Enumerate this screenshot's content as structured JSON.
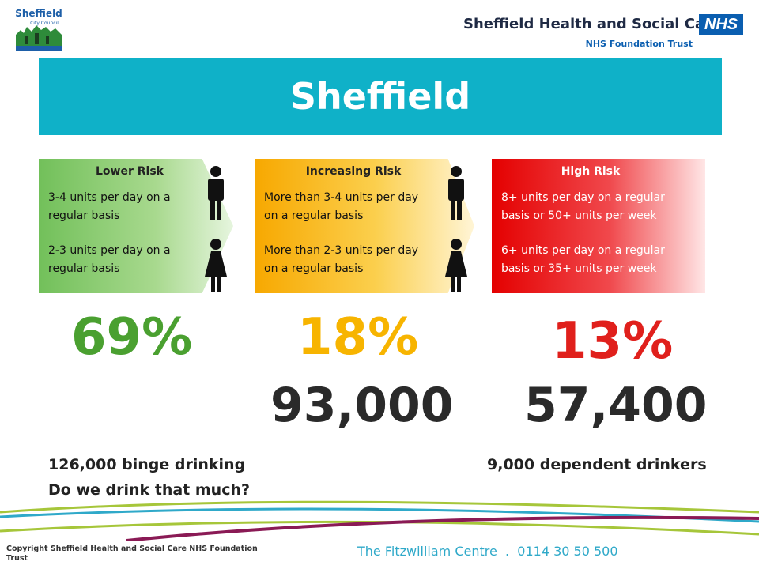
{
  "header": {
    "council_logo_text": [
      "Sheffield",
      "City Council"
    ],
    "org_name": "Sheffield Health and Social Care",
    "nhs_logo": "NHS",
    "org_subtitle": "NHS Foundation Trust"
  },
  "title": "Sheffield",
  "risk_panels": [
    {
      "title": "Lower Risk",
      "male_text": "3-4 units per day on a regular basis",
      "female_text": "2-3 units per day on a regular basis",
      "color": "#72c05a"
    },
    {
      "title": "Increasing Risk",
      "male_text": "More than 3-4 units per day on a regular basis",
      "female_text": "More than 2-3 units per day on a regular basis",
      "color": "#f7a800"
    },
    {
      "title": "High Risk",
      "male_text": "8+ units per day on a regular basis or 50+ units per week",
      "female_text": "6+ units per day on a regular basis or 35+ units per week",
      "color": "#e40000"
    }
  ],
  "stats": {
    "lower_pct": "69%",
    "increasing_pct": "18%",
    "high_pct": "13%",
    "increasing_count": "93,000",
    "high_count": "57,400"
  },
  "notes": {
    "binge": "126,000 binge drinking",
    "question": "Do we drink that much?",
    "dependent": "9,000 dependent drinkers"
  },
  "footer": {
    "copyright": "Copyright Sheffield Health and Social Care NHS Foundation Trust",
    "contact": "The Fitzwilliam Centre  .  0114 30 50 500"
  },
  "colors": {
    "title_band": "#0fb1c8",
    "lower": "#4aa030",
    "increasing": "#f7b400",
    "high": "#e0201c"
  }
}
